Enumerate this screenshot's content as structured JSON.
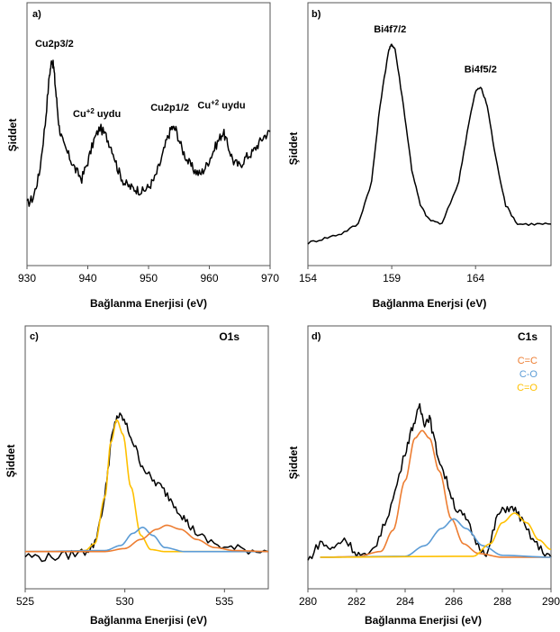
{
  "figure": {
    "panels": [
      {
        "id": "a",
        "panel_label": "a)",
        "xlabel": "Bağlanma Enerjisi (eV)",
        "ylabel": "Şiddet",
        "corner_title": ""
      },
      {
        "id": "b",
        "panel_label": "b)",
        "xlabel": "Bağlanma Enerjsi (eV)",
        "ylabel": "Şiddet",
        "corner_title": ""
      },
      {
        "id": "c",
        "panel_label": "c)",
        "xlabel": "Bağlanma Enerjisi (eV)",
        "ylabel": "Şiddet",
        "corner_title": "O1s"
      },
      {
        "id": "d",
        "panel_label": "d)",
        "xlabel": "Bağlanma Enerjisi (eV)",
        "ylabel": "Şiddet",
        "corner_title": "C1s"
      }
    ]
  },
  "chart_data": [
    {
      "type": "line",
      "panel": "a",
      "xlim": [
        930,
        970
      ],
      "xticks": [
        "930",
        "940",
        "950",
        "960",
        "970"
      ],
      "ylim": [
        0,
        100
      ],
      "y_ticks_shown": false,
      "grid": false,
      "annotations": [
        {
          "text": "Cu2p3/2",
          "x": 934.5,
          "y": 88
        },
        {
          "text": "Cu+2 uydu",
          "x": 941.5,
          "y": 55
        },
        {
          "text": "Cu2p1/2",
          "x": 953.5,
          "y": 58
        },
        {
          "text": "Cu+2 uydu",
          "x": 962,
          "y": 59
        }
      ],
      "series": [
        {
          "color": "#000000",
          "x": [
            930,
            931,
            932,
            933,
            933.7,
            934.1,
            934.4,
            934.8,
            935.3,
            936,
            937,
            938,
            939,
            940,
            941,
            942,
            943,
            944,
            945,
            946,
            947,
            948,
            949,
            950,
            951,
            952,
            953,
            953.8,
            954.5,
            955.5,
            956.5,
            957.5,
            958.5,
            959.5,
            960.5,
            961.5,
            962.3,
            963,
            964,
            965,
            966,
            967,
            968,
            969,
            970
          ],
          "y": [
            14,
            17,
            28,
            52,
            75,
            82,
            78,
            65,
            50,
            42,
            36,
            30,
            26,
            34,
            44,
            50,
            46,
            40,
            30,
            24,
            22,
            21,
            20,
            22,
            26,
            34,
            44,
            50,
            49,
            40,
            34,
            30,
            28,
            32,
            38,
            44,
            48,
            42,
            34,
            32,
            36,
            38,
            42,
            46,
            48
          ]
        }
      ]
    },
    {
      "type": "line",
      "panel": "b",
      "xlim": [
        154,
        168.5
      ],
      "xticks": [
        "154",
        "159",
        "164"
      ],
      "ylim": [
        0,
        100
      ],
      "y_ticks_shown": false,
      "grid": false,
      "annotations": [
        {
          "text": "Bi4f7/2",
          "x": 158.9,
          "y": 93
        },
        {
          "text": "Bi4f5/2",
          "x": 164.3,
          "y": 76
        }
      ],
      "series": [
        {
          "color": "#000000",
          "x": [
            154,
            155,
            156,
            157,
            157.8,
            158.3,
            158.8,
            159.0,
            159.2,
            159.7,
            160.2,
            160.7,
            161.2,
            162,
            163,
            163.6,
            164.0,
            164.3,
            164.7,
            165.2,
            165.8,
            166.5,
            167.5,
            168.5
          ],
          "y": [
            4,
            6,
            8,
            12,
            30,
            62,
            85,
            88,
            86,
            62,
            35,
            20,
            14,
            12,
            30,
            55,
            68,
            70,
            62,
            40,
            20,
            12,
            12,
            12
          ]
        }
      ]
    },
    {
      "type": "line",
      "panel": "c",
      "xlim": [
        525,
        537.2
      ],
      "xticks": [
        "525",
        "530",
        "535"
      ],
      "ylim": [
        0,
        100
      ],
      "y_ticks_shown": false,
      "grid": false,
      "series": [
        {
          "color": "#000000",
          "x": [
            525,
            526,
            527,
            528,
            528.5,
            529,
            529.3,
            529.6,
            529.9,
            530.3,
            530.8,
            531.3,
            531.8,
            532.3,
            532.8,
            533.3,
            534,
            535,
            536,
            537.2
          ],
          "y": [
            6,
            5,
            6,
            8,
            12,
            35,
            62,
            75,
            74,
            65,
            52,
            44,
            40,
            34,
            27,
            20,
            14,
            10,
            9,
            8
          ]
        },
        {
          "color": "#ffc000",
          "x": [
            525,
            527,
            528,
            528.5,
            529,
            529.3,
            529.6,
            529.9,
            530.3,
            530.8,
            531.3,
            532,
            533,
            537.2
          ],
          "y": [
            8,
            8,
            8.5,
            12,
            35,
            62,
            73,
            66,
            40,
            16,
            9,
            8,
            8,
            8
          ]
        },
        {
          "color": "#5b9bd5",
          "x": [
            525,
            529,
            529.8,
            530.4,
            530.9,
            531.4,
            532,
            533,
            537.2
          ],
          "y": [
            8,
            8.5,
            11,
            17,
            20,
            16,
            10,
            8,
            8
          ]
        },
        {
          "color": "#ed7d31",
          "x": [
            525,
            529,
            530,
            530.8,
            531.6,
            532.1,
            532.8,
            533.6,
            534.5,
            535.5,
            537.2
          ],
          "y": [
            8,
            8,
            9.5,
            14,
            19,
            21,
            19,
            14,
            10,
            8.5,
            8
          ]
        }
      ]
    },
    {
      "type": "line",
      "panel": "d",
      "xlim": [
        280,
        290
      ],
      "xticks": [
        "280",
        "282",
        "284",
        "286",
        "288",
        "290"
      ],
      "ylim": [
        0,
        100
      ],
      "y_ticks_shown": false,
      "grid": false,
      "legend": {
        "placement": "top-right",
        "entries": [
          {
            "name": "C=C",
            "color": "#ed7d31"
          },
          {
            "name": "C-O",
            "color": "#5b9bd5"
          },
          {
            "name": "C=O",
            "color": "#ffc000"
          }
        ]
      },
      "series": [
        {
          "name": "",
          "color": "#000000",
          "x": [
            280,
            280.5,
            281,
            281.5,
            282,
            282.5,
            283,
            283.5,
            284,
            284.3,
            284.6,
            284.8,
            285,
            285.3,
            285.7,
            286.1,
            286.5,
            287,
            287.4,
            287.8,
            288.2,
            288.6,
            289,
            289.5,
            290
          ],
          "y": [
            -2,
            8,
            4,
            10,
            2,
            0,
            12,
            30,
            55,
            68,
            78,
            70,
            73,
            55,
            40,
            25,
            20,
            6,
            2,
            22,
            26,
            24,
            14,
            5,
            0
          ]
        },
        {
          "name": "C=C",
          "color": "#ed7d31",
          "x": [
            280.5,
            282,
            283,
            283.5,
            284,
            284.4,
            284.7,
            285,
            285.4,
            285.9,
            286.4,
            287,
            288,
            290
          ],
          "y": [
            0,
            0.3,
            3,
            14,
            40,
            62,
            66,
            62,
            45,
            20,
            7,
            2,
            0,
            0
          ]
        },
        {
          "name": "C-O",
          "color": "#5b9bd5",
          "x": [
            280.5,
            284,
            284.8,
            285.5,
            286,
            286.5,
            287.2,
            288,
            290
          ],
          "y": [
            0,
            0.5,
            6,
            15,
            20,
            15,
            6,
            1,
            0
          ]
        },
        {
          "name": "C=O",
          "color": "#ffc000",
          "x": [
            280.5,
            286.8,
            287.5,
            288,
            288.5,
            289,
            289.5,
            290
          ],
          "y": [
            0,
            0.5,
            7,
            18,
            23,
            18,
            9,
            4
          ]
        }
      ]
    }
  ]
}
